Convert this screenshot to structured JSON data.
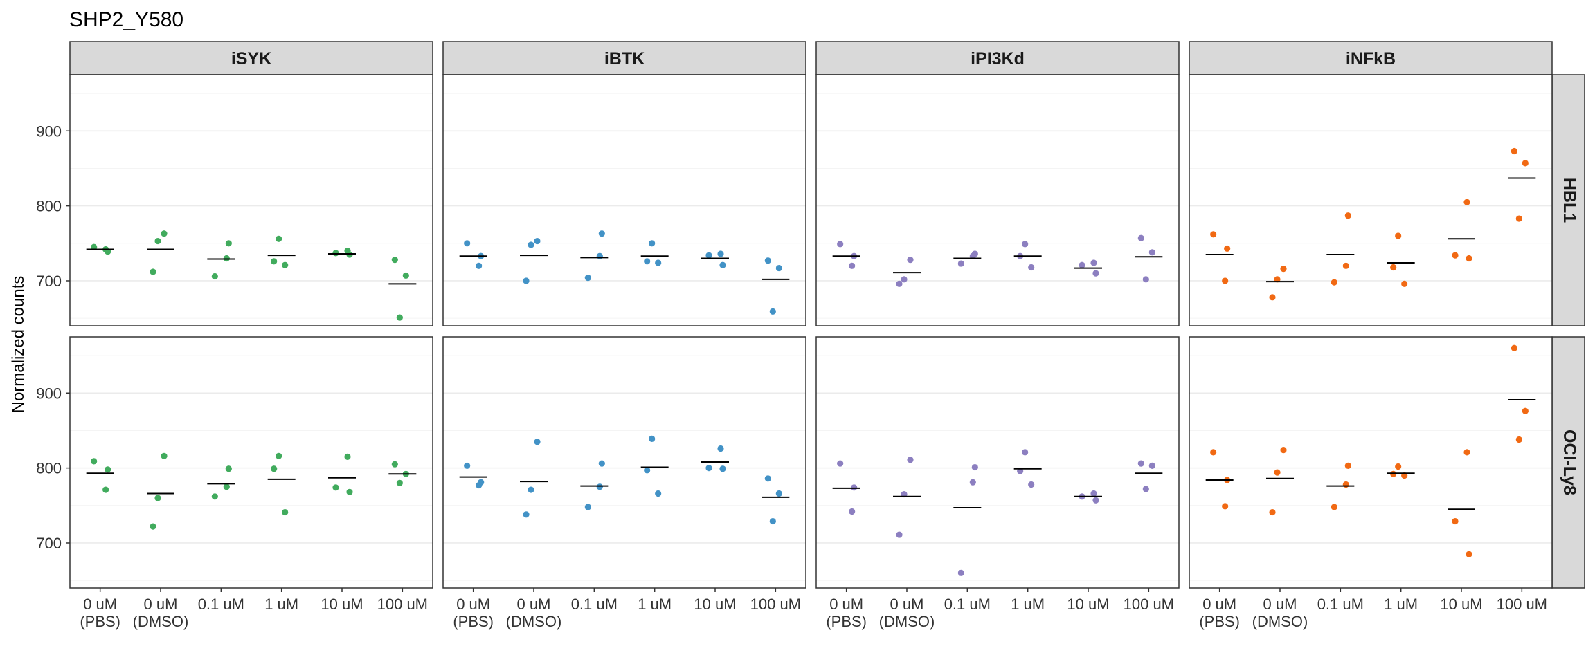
{
  "chart_data": {
    "type": "scatter",
    "title": "SHP2_Y580",
    "ylabel": "Normalized counts",
    "xlabel": "",
    "ylim": [
      640,
      975
    ],
    "yticks": [
      700,
      800,
      900
    ],
    "grid": true,
    "legend": "none",
    "categories": [
      "0 uM\n(PBS)",
      "0 uM\n(DMSO)",
      "0.1 uM",
      "1 uM",
      "10 uM",
      "100 uM"
    ],
    "column_facets": [
      "iSYK",
      "iBTK",
      "iPI3Kd",
      "iNFkB"
    ],
    "row_facets": [
      "HBL1",
      "OCI-Ly8"
    ],
    "colors": {
      "iSYK": "#41ab5d",
      "iBTK": "#4292c6",
      "iPI3Kd": "#8c7fc0",
      "iNFkB": "#f16913"
    },
    "panels": [
      {
        "column": "iSYK",
        "row": "HBL1",
        "points": [
          [
            745,
            739,
            742
          ],
          [
            763,
            753,
            712
          ],
          [
            750,
            730,
            706
          ],
          [
            756,
            726,
            721
          ],
          [
            740,
            737,
            735
          ],
          [
            728,
            707,
            651
          ]
        ],
        "means": [
          742,
          742,
          729,
          734,
          736,
          696
        ]
      },
      {
        "column": "iBTK",
        "row": "HBL1",
        "points": [
          [
            750,
            733,
            720
          ],
          [
            753,
            748,
            700
          ],
          [
            763,
            733,
            704
          ],
          [
            750,
            726,
            724
          ],
          [
            736,
            734,
            721
          ],
          [
            727,
            717,
            659
          ]
        ],
        "means": [
          733,
          734,
          731,
          733,
          730,
          702
        ]
      },
      {
        "column": "iPI3Kd",
        "row": "HBL1",
        "points": [
          [
            749,
            733,
            720
          ],
          [
            728,
            702,
            696
          ],
          [
            736,
            733,
            723
          ],
          [
            749,
            733,
            718
          ],
          [
            724,
            721,
            710
          ],
          [
            757,
            738,
            702
          ]
        ],
        "means": [
          733,
          711,
          730,
          733,
          717,
          732
        ]
      },
      {
        "column": "iNFkB",
        "row": "HBL1",
        "points": [
          [
            762,
            743,
            700
          ],
          [
            716,
            702,
            678
          ],
          [
            787,
            720,
            698
          ],
          [
            760,
            718,
            696
          ],
          [
            805,
            734,
            730
          ],
          [
            873,
            857,
            783
          ]
        ],
        "means": [
          735,
          699,
          735,
          724,
          756,
          837
        ]
      },
      {
        "column": "iSYK",
        "row": "OCI-Ly8",
        "points": [
          [
            809,
            798,
            771
          ],
          [
            816,
            760,
            722
          ],
          [
            799,
            775,
            762
          ],
          [
            816,
            799,
            741
          ],
          [
            815,
            774,
            768
          ],
          [
            805,
            792,
            780
          ]
        ],
        "means": [
          793,
          766,
          779,
          785,
          787,
          792
        ]
      },
      {
        "column": "iBTK",
        "row": "OCI-Ly8",
        "points": [
          [
            803,
            781,
            777
          ],
          [
            835,
            771,
            738
          ],
          [
            806,
            775,
            748
          ],
          [
            839,
            797,
            766
          ],
          [
            826,
            800,
            799
          ],
          [
            786,
            766,
            729
          ]
        ],
        "means": [
          788,
          782,
          776,
          801,
          808,
          761
        ]
      },
      {
        "column": "iPI3Kd",
        "row": "OCI-Ly8",
        "points": [
          [
            806,
            774,
            742
          ],
          [
            811,
            765,
            711
          ],
          [
            801,
            781,
            660
          ],
          [
            821,
            796,
            778
          ],
          [
            766,
            762,
            757
          ],
          [
            806,
            803,
            772
          ]
        ],
        "means": [
          773,
          762,
          747,
          799,
          762,
          793
        ]
      },
      {
        "column": "iNFkB",
        "row": "OCI-Ly8",
        "points": [
          [
            821,
            784,
            749
          ],
          [
            824,
            794,
            741
          ],
          [
            803,
            778,
            748
          ],
          [
            802,
            792,
            790
          ],
          [
            821,
            729,
            685
          ],
          [
            960,
            876,
            838
          ]
        ],
        "means": [
          784,
          786,
          776,
          793,
          745,
          891
        ]
      }
    ]
  }
}
